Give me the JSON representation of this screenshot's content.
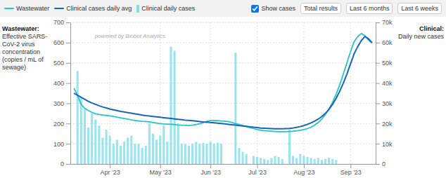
{
  "chart_data": {
    "type": "line",
    "ylabel": "Wastewater:\nEffective SARS-\nCoV-2 virus\nconcentration\n(copies / mL of\nsewage)",
    "y2label": "Clinical:\nDaily new cases",
    "annotations": [
      "powered by Biobot Analytics"
    ],
    "buttons": [
      "Show cases",
      "Total results",
      "Last 6 months",
      "Last 6 weeks"
    ],
    "legend": "top",
    "grid": true,
    "xlim": [
      -1,
      84
    ],
    "xticks": [
      {
        "value": 10,
        "label": "Apr '23"
      },
      {
        "value": 24,
        "label": "May '23"
      },
      {
        "value": 38,
        "label": "Jun '23"
      },
      {
        "value": 51,
        "label": "Jul '23"
      },
      {
        "value": 64,
        "label": "Aug '23"
      },
      {
        "value": 77,
        "label": "Sep '23"
      }
    ],
    "ylim": [
      0,
      700
    ],
    "yticks": [
      0,
      100,
      200,
      300,
      400,
      500,
      600,
      700
    ],
    "y2lim": [
      0,
      70000
    ],
    "y2ticks": [
      0,
      {
        "value": 10000,
        "label": "10k"
      },
      {
        "value": 20000,
        "label": "20k"
      },
      {
        "value": 30000,
        "label": "30k"
      },
      {
        "value": 40000,
        "label": "40k"
      },
      {
        "value": 50000,
        "label": "50k"
      },
      {
        "value": 60000,
        "label": "60k"
      },
      {
        "value": 70000,
        "label": "70k"
      }
    ],
    "series": [
      {
        "name": "Wastewater",
        "type": "line",
        "color": "#26c6c6",
        "x": [
          0,
          1,
          2,
          3,
          4,
          5,
          6,
          7,
          8,
          9,
          10,
          11,
          12,
          13,
          14,
          15,
          16,
          17,
          18,
          19,
          20,
          21,
          22,
          23,
          24,
          25,
          26,
          27,
          28,
          29,
          30,
          31,
          32,
          33,
          34,
          35,
          36,
          37,
          38,
          39,
          40,
          41,
          42,
          43,
          44,
          45,
          46,
          47,
          48,
          49,
          50,
          51,
          52,
          53,
          54,
          55,
          56,
          57,
          58,
          59,
          60,
          61,
          62,
          63,
          64,
          65,
          66,
          67,
          68,
          69,
          70,
          71,
          72,
          73,
          74,
          75,
          76,
          77,
          78,
          79,
          80,
          81,
          82,
          83
        ],
        "values": [
          375,
          340,
          295,
          275,
          265,
          255,
          248,
          245,
          242,
          240,
          238,
          235,
          232,
          228,
          225,
          222,
          218,
          215,
          213,
          211,
          210,
          208,
          205,
          202,
          200,
          198,
          197,
          196,
          195,
          193,
          192,
          191,
          190,
          192,
          195,
          199,
          205,
          210,
          215,
          215,
          214,
          213,
          212,
          210,
          205,
          200,
          195,
          190,
          185,
          180,
          175,
          170,
          167,
          165,
          163,
          162,
          161,
          160,
          160,
          160,
          161,
          162,
          164,
          167,
          170,
          175,
          182,
          192,
          205,
          222,
          245,
          272,
          305,
          345,
          392,
          445,
          500,
          555,
          605,
          630,
          645,
          635,
          612,
          598
        ]
      },
      {
        "name": "Clinical cases daily avg",
        "type": "line",
        "color": "#1565c0",
        "axis": "y2",
        "x": [
          0,
          1,
          2,
          3,
          4,
          5,
          6,
          7,
          8,
          9,
          10,
          11,
          12,
          13,
          14,
          15,
          16,
          17,
          18,
          19,
          20,
          21,
          22,
          23,
          24,
          25,
          26,
          27,
          28,
          29,
          30,
          31,
          32,
          33,
          34,
          35,
          36,
          37,
          38,
          39,
          40,
          41,
          42,
          43,
          44,
          45,
          46,
          47,
          48,
          49,
          50,
          51,
          52,
          53,
          54,
          55,
          56,
          57,
          58,
          59,
          60,
          61,
          62,
          63,
          64,
          65,
          66,
          67,
          68,
          69,
          70,
          71,
          72,
          73,
          74,
          75,
          76,
          77,
          78,
          79,
          80,
          81,
          82,
          83
        ],
        "values": [
          35000,
          34000,
          33000,
          32000,
          31000,
          30200,
          29500,
          28800,
          28200,
          27700,
          27200,
          26800,
          26400,
          26000,
          25700,
          25400,
          25100,
          24800,
          24500,
          24200,
          23900,
          23700,
          23500,
          23300,
          23100,
          22900,
          22700,
          22500,
          22300,
          22100,
          21900,
          21700,
          21600,
          21400,
          21200,
          21000,
          20800,
          20700,
          20500,
          20400,
          20200,
          20000,
          19800,
          19600,
          19400,
          19200,
          19000,
          18800,
          18600,
          18400,
          18200,
          18000,
          17800,
          17700,
          17600,
          17500,
          17400,
          17400,
          17400,
          17500,
          17600,
          17800,
          18100,
          18500,
          19000,
          19600,
          20300,
          21200,
          22200,
          23500,
          25000,
          27000,
          29500,
          32500,
          36000,
          40000,
          44500,
          49500,
          54500,
          58000,
          61000,
          63000,
          62000,
          60000
        ]
      },
      {
        "name": "Clinical daily cases",
        "type": "bar",
        "color": "#80deea",
        "x": [
          1,
          2,
          3,
          4,
          5,
          6,
          7,
          8,
          9,
          10,
          11,
          12,
          13,
          14,
          15,
          16,
          17,
          18,
          19,
          20,
          21,
          22,
          23,
          24,
          25,
          26,
          27,
          28,
          29,
          30,
          31,
          32,
          33,
          34,
          35,
          36,
          37,
          38,
          39,
          40,
          41,
          45,
          46,
          47,
          48,
          50,
          51,
          52,
          53,
          54,
          55,
          56,
          57,
          58,
          60,
          61,
          62,
          63,
          64,
          65,
          66,
          67,
          68,
          69,
          70,
          71,
          72,
          73
        ],
        "values": [
          460,
          330,
          270,
          180,
          250,
          220,
          190,
          130,
          170,
          140,
          100,
          120,
          90,
          110,
          130,
          140,
          100,
          100,
          80,
          90,
          200,
          150,
          120,
          140,
          190,
          110,
          580,
          560,
          200,
          100,
          100,
          90,
          100,
          110,
          100,
          105,
          100,
          110,
          100,
          105,
          100,
          550,
          80,
          60,
          50,
          40,
          35,
          30,
          25,
          20,
          30,
          40,
          35,
          25,
          170,
          40,
          30,
          50,
          40,
          35,
          30,
          25,
          30,
          20,
          25,
          30,
          25,
          20
        ]
      }
    ]
  }
}
